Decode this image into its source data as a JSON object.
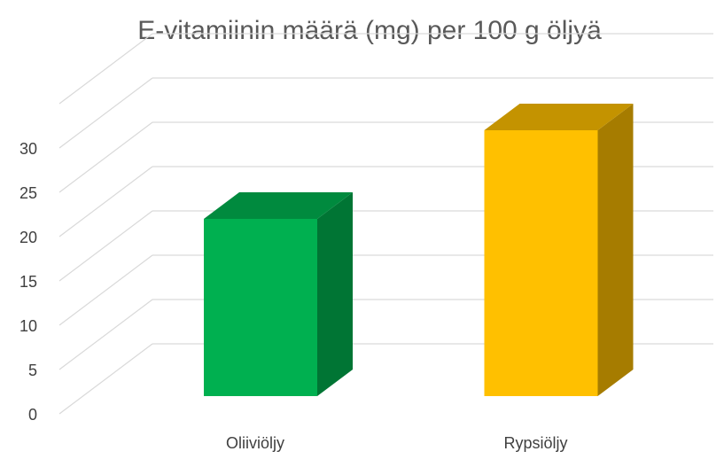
{
  "chart_data": {
    "type": "bar",
    "title": "E-vitamiinin määrä (mg) per 100 g öljyä",
    "xlabel": "",
    "ylabel": "",
    "categories": [
      "Oliiviöljy",
      "Rypsiöljy"
    ],
    "values": [
      20,
      30
    ],
    "ylim": [
      0,
      30
    ],
    "yticks": [
      0,
      5,
      10,
      15,
      20,
      25,
      30
    ],
    "grid": true,
    "legend": "none",
    "style": "3d-column",
    "bar_colors": [
      {
        "front": "#00b050",
        "side": "#007534",
        "top": "#008a3e"
      },
      {
        "front": "#ffc000",
        "side": "#a67c00",
        "top": "#c49300"
      }
    ]
  }
}
